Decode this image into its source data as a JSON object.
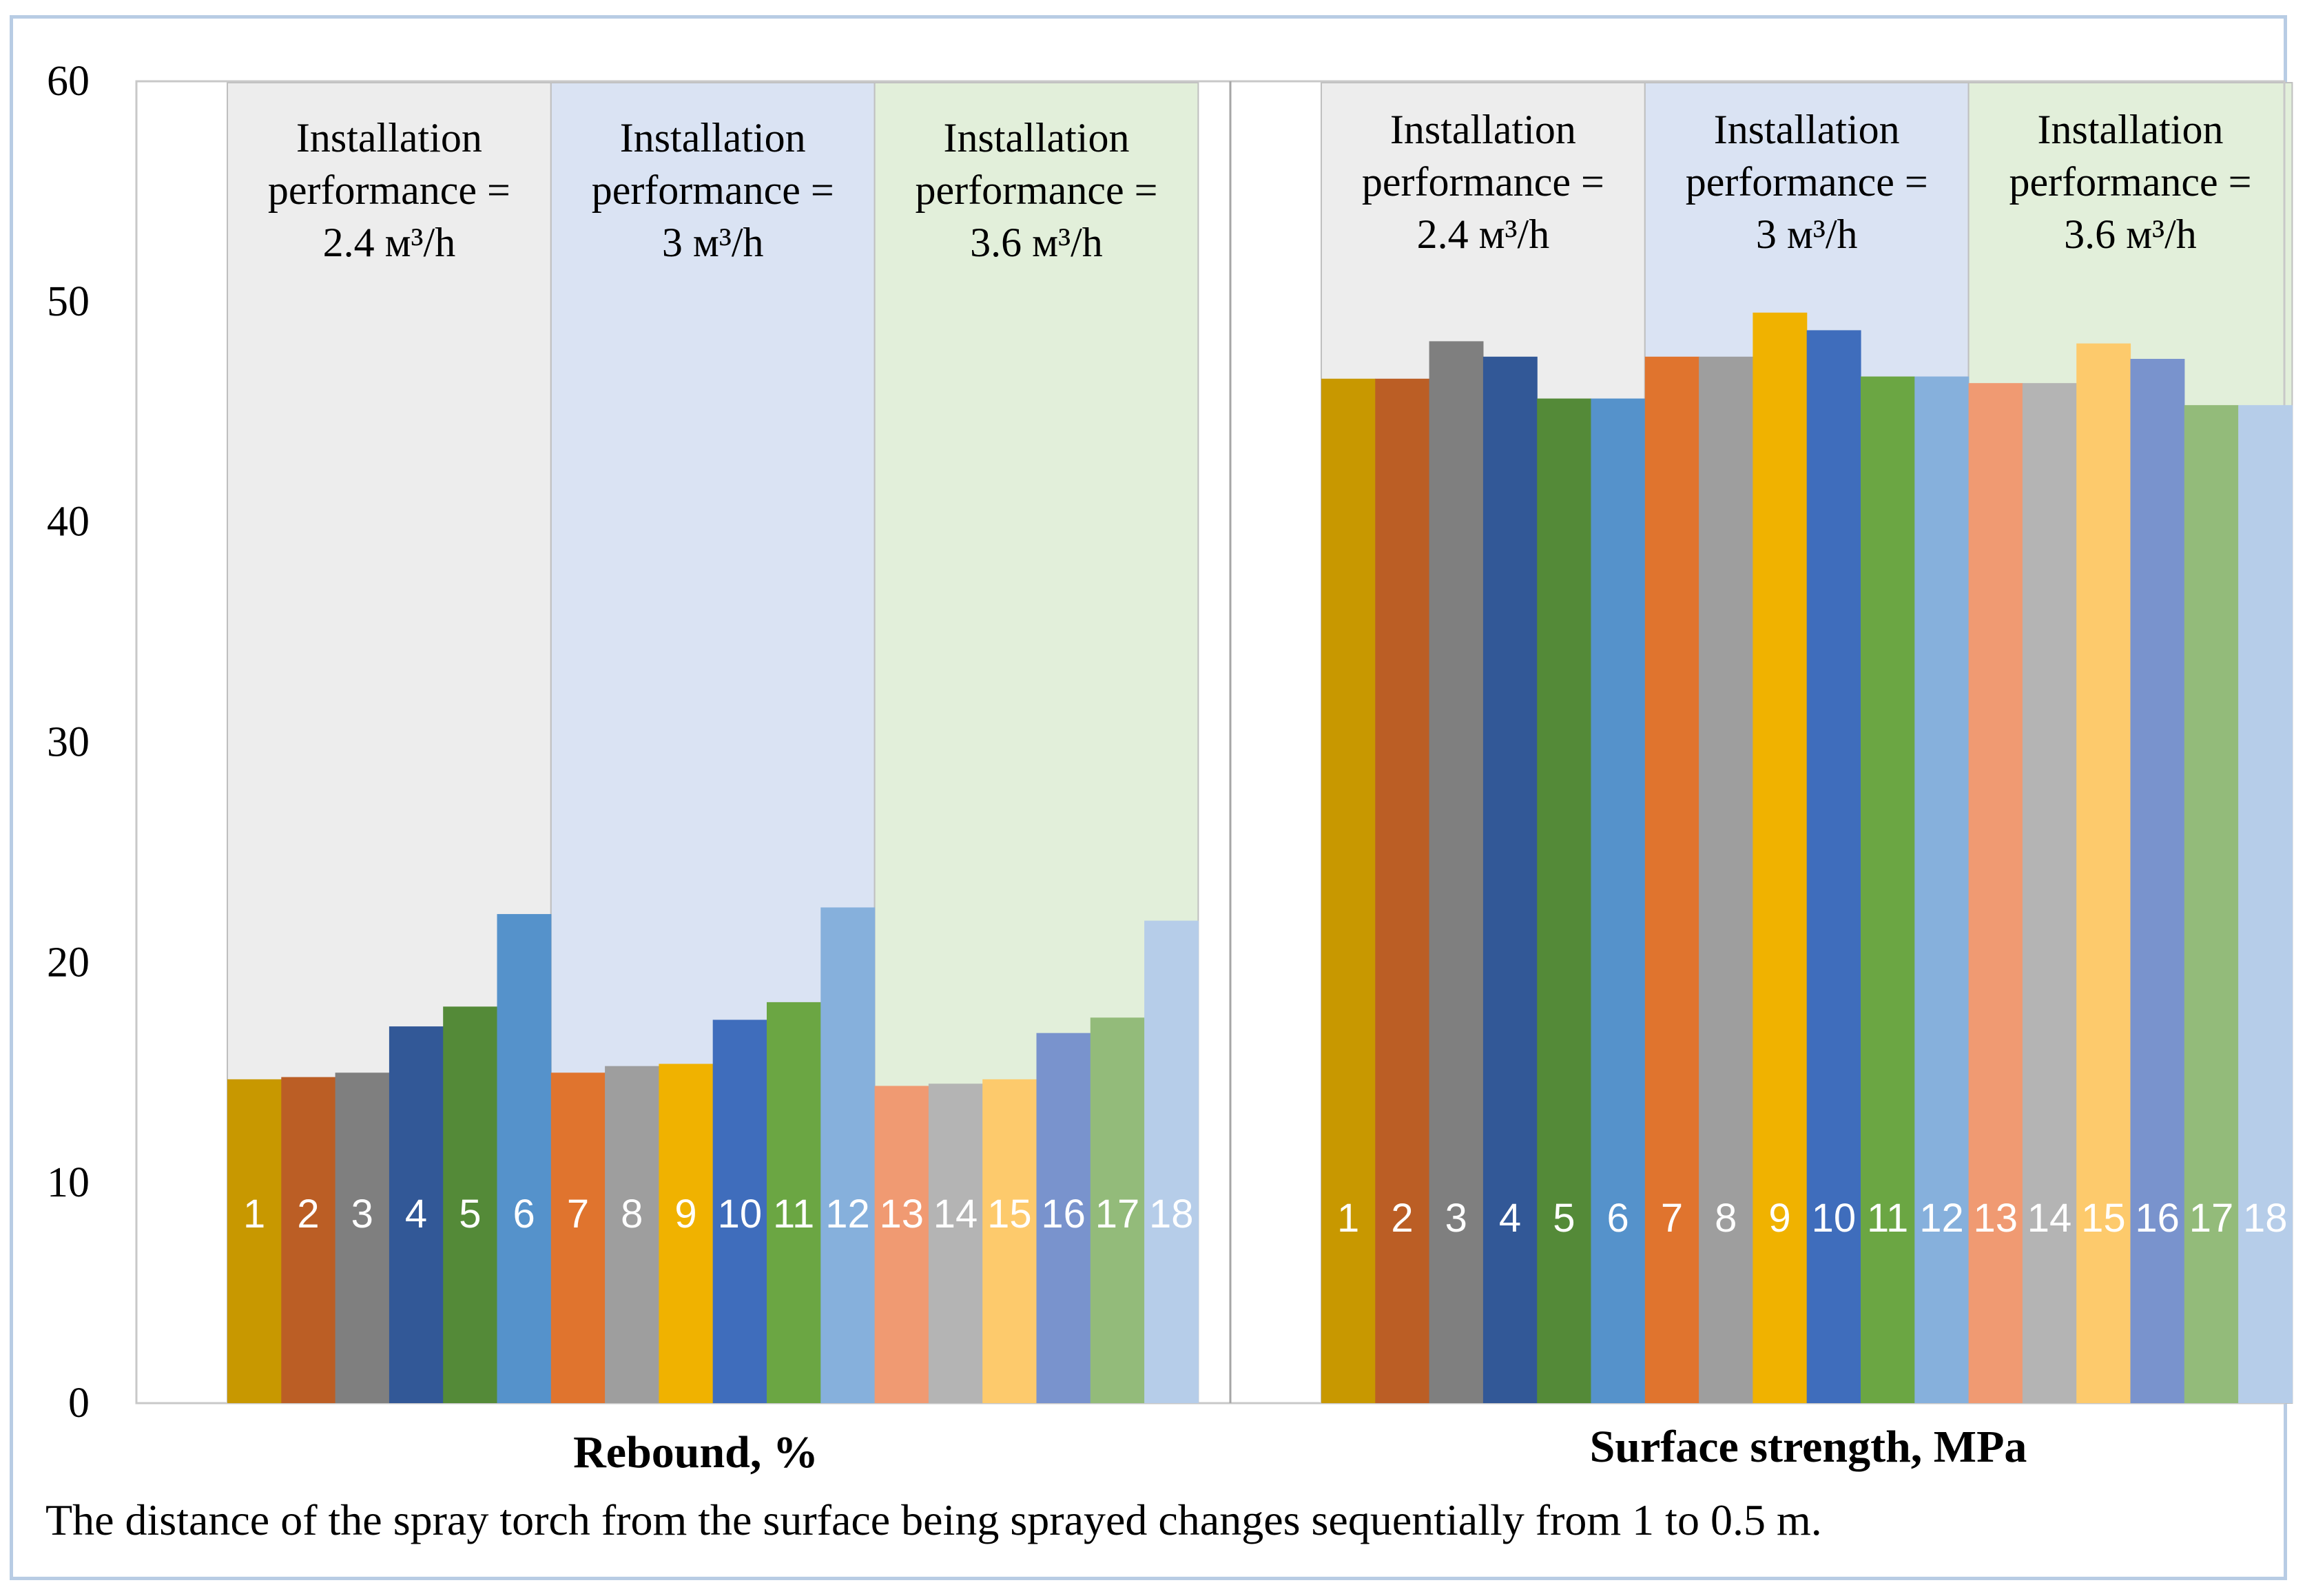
{
  "chart_data": {
    "type": "bar",
    "ylim": [
      0,
      60
    ],
    "yticks": [
      0,
      10,
      20,
      30,
      40,
      50,
      60
    ],
    "grid": false,
    "caption": "The distance of the spray torch from the surface being sprayed changes sequentially from 1 to 0.5 m.",
    "zones": [
      {
        "line1": "Installation",
        "line2": "performance =",
        "line3": "2.4 м³/h",
        "color": "#ededed"
      },
      {
        "line1": "Installation",
        "line2": "performance =",
        "line3": "3 м³/h",
        "color": "#dae3f3"
      },
      {
        "line1": "Installation",
        "line2": "performance =",
        "line3": "3.6 м³/h",
        "color": "#e2efda"
      }
    ],
    "colors": [
      "#c89800",
      "#bb5e25",
      "#7f7f7f",
      "#325897",
      "#548a38",
      "#5592cb",
      "#e0742e",
      "#9e9e9e",
      "#f0b200",
      "#3f6dbc",
      "#6ba643",
      "#86b0dc",
      "#f09a72",
      "#b4b4b4",
      "#fdca6c",
      "#7993cd",
      "#93bb7a",
      "#b6cde9"
    ],
    "categories": [
      "1",
      "2",
      "3",
      "4",
      "5",
      "6",
      "7",
      "8",
      "9",
      "10",
      "11",
      "12",
      "13",
      "14",
      "15",
      "16",
      "17",
      "18"
    ],
    "groups": [
      {
        "name": "Rebound, %",
        "values": [
          14.7,
          14.8,
          15.0,
          17.1,
          18.0,
          22.2,
          15.0,
          15.3,
          15.4,
          17.4,
          18.2,
          22.5,
          14.4,
          14.5,
          14.7,
          16.8,
          17.5,
          21.9
        ]
      },
      {
        "name": "Surface strength, MPa",
        "values": [
          46.5,
          46.5,
          48.2,
          47.5,
          45.6,
          45.6,
          47.5,
          47.5,
          49.5,
          48.7,
          46.6,
          46.6,
          46.3,
          46.3,
          48.1,
          47.4,
          45.3,
          45.3
        ]
      }
    ]
  }
}
